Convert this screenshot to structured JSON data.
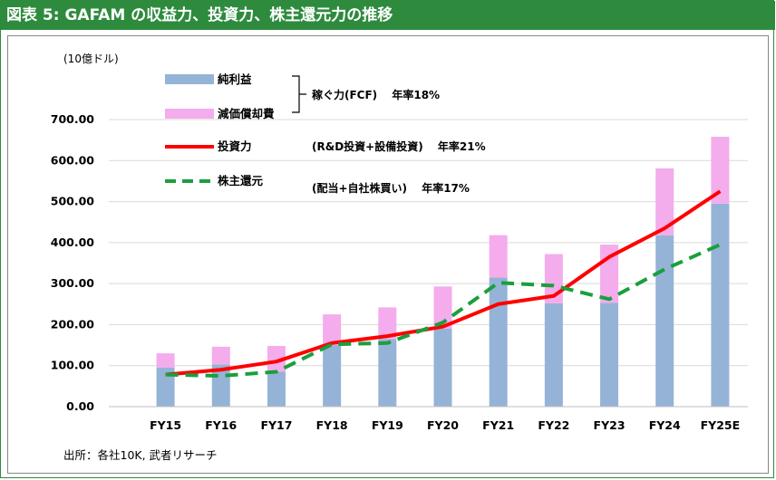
{
  "header": {
    "title": "図表 5: GAFAM の収益力、投資力、株主還元力の推移"
  },
  "chart_data": {
    "type": "bar",
    "title": "図表 5: GAFAM の収益力、投資力、株主還元力の推移",
    "unit_label": "(10億ドル)",
    "ylim": [
      0,
      700
    ],
    "yticks": [
      0,
      100,
      200,
      300,
      400,
      500,
      600,
      700
    ],
    "ytick_labels": [
      "0.00",
      "100.00",
      "200.00",
      "300.00",
      "400.00",
      "500.00",
      "600.00",
      "700.00"
    ],
    "categories": [
      "FY15",
      "FY16",
      "FY17",
      "FY18",
      "FY19",
      "FY20",
      "FY21",
      "FY22",
      "FY23",
      "FY24",
      "FY25E"
    ],
    "series": [
      {
        "name": "純利益",
        "kind": "bar-stack",
        "color": "#95b3d7",
        "values": [
          95,
          103,
          85,
          150,
          165,
          190,
          315,
          252,
          253,
          418,
          495
        ]
      },
      {
        "name": "減価償却費",
        "kind": "bar-stack",
        "color": "#f4acec",
        "values": [
          35,
          43,
          63,
          75,
          77,
          103,
          103,
          120,
          142,
          163,
          163
        ]
      },
      {
        "name": "投資力",
        "kind": "line",
        "style": "solid",
        "color": "#ff0000",
        "values": [
          78,
          90,
          110,
          155,
          172,
          195,
          250,
          270,
          365,
          435,
          525
        ]
      },
      {
        "name": "株主還元",
        "kind": "line",
        "style": "dashed",
        "color": "#1a9f3c",
        "values": [
          78,
          75,
          85,
          152,
          155,
          205,
          302,
          295,
          262,
          335,
          395
        ]
      }
    ],
    "annotations": {
      "fcf": "稼ぐ力(FCF)　 年率18%",
      "capex": "(R&D投資+設備投資)　 年率21%",
      "shareholder": "(配当+自社株買い)　 年率17%"
    },
    "source": "出所：各社10K, 武者リサーチ"
  }
}
